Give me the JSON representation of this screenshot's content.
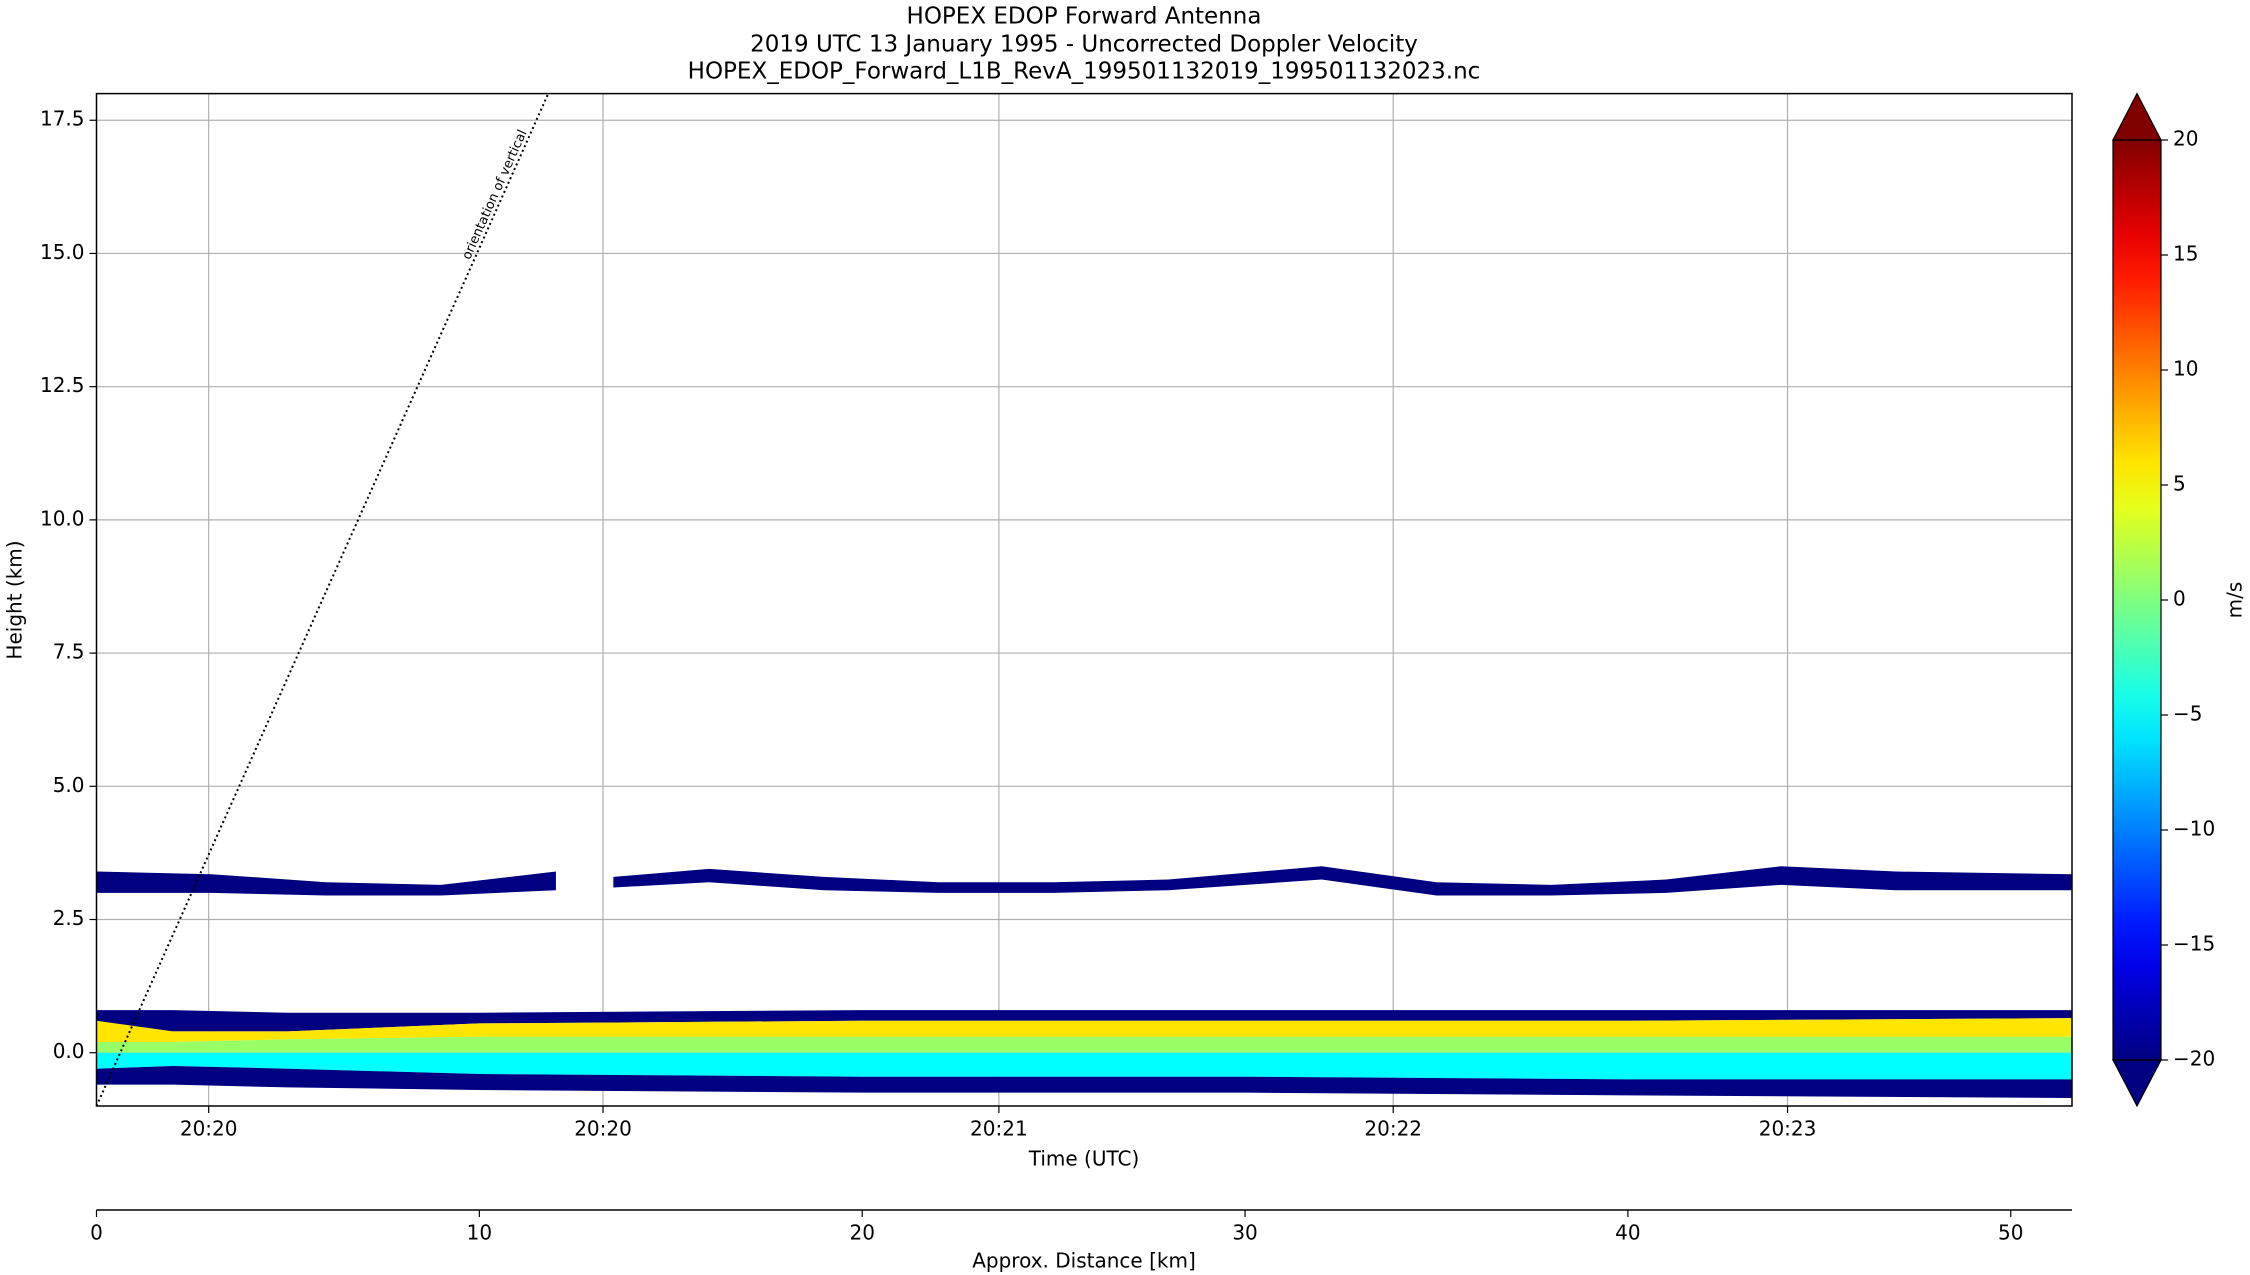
{
  "chart_data": {
    "type": "heatmap",
    "title": "HOPEX EDOP Forward Antenna",
    "subtitle": "2019 UTC 13 January 1995 - Uncorrected Doppler Velocity",
    "source": "HOPEX_EDOP_Forward_L1B_RevA_199501132019_199501132023.nc",
    "xlabel": "Time (UTC)",
    "x2label": "Approx. Distance [km]",
    "ylabel": "Height (km)",
    "xlim": [
      0,
      51.6
    ],
    "ylim": [
      -1,
      18
    ],
    "grid": true,
    "xticks": [
      {
        "value": 2.93,
        "label": "20:20"
      },
      {
        "value": 13.23,
        "label": "20:20"
      },
      {
        "value": 23.57,
        "label": "20:21"
      },
      {
        "value": 33.87,
        "label": "20:22"
      },
      {
        "value": 44.17,
        "label": "20:23"
      }
    ],
    "x2ticks": [
      0,
      10,
      20,
      30,
      40,
      50
    ],
    "yticks": [
      {
        "value": 0,
        "label": "0.0"
      },
      2.5,
      {
        "value": 5,
        "label": "5.0"
      },
      7.5,
      {
        "value": 10,
        "label": "10.0"
      },
      12.5,
      {
        "value": 15,
        "label": "15.0"
      },
      17.5
    ],
    "colorbar": {
      "label": "m/s",
      "colormap": "jet",
      "extend": "both",
      "lim": [
        -20,
        20
      ],
      "ticks": [
        {
          "value": -20,
          "label": "−20"
        },
        {
          "value": -15,
          "label": "−15"
        },
        {
          "value": -10,
          "label": "−10"
        },
        {
          "value": -5,
          "label": "−5"
        },
        0,
        5,
        10,
        15,
        20
      ]
    },
    "layers": [
      {
        "velocity": -20,
        "x": [
          0,
          3,
          6,
          9,
          12
        ],
        "top": [
          3.4,
          3.35,
          3.2,
          3.15,
          3.4
        ],
        "bottom": [
          3.0,
          3.0,
          2.95,
          2.95,
          3.05
        ]
      },
      {
        "velocity": -20,
        "x": [
          13.5,
          16,
          19,
          22,
          25,
          28,
          32,
          35,
          38,
          41,
          44,
          47,
          51.6
        ],
        "top": [
          3.3,
          3.45,
          3.3,
          3.2,
          3.2,
          3.25,
          3.5,
          3.2,
          3.15,
          3.25,
          3.5,
          3.4,
          3.35
        ],
        "bottom": [
          3.1,
          3.2,
          3.05,
          3.0,
          3.0,
          3.05,
          3.25,
          2.95,
          2.95,
          3.0,
          3.15,
          3.05,
          3.05
        ]
      },
      {
        "velocity": -20,
        "x": [
          0,
          2,
          5,
          10,
          20,
          30,
          40,
          51.6
        ],
        "top": [
          0.8,
          0.8,
          0.75,
          0.75,
          0.8,
          0.8,
          0.8,
          0.8
        ],
        "bottom": [
          0.3,
          0.4,
          0.4,
          0.55,
          0.6,
          0.6,
          0.6,
          0.65
        ]
      },
      {
        "velocity": 6,
        "x": [
          0,
          2,
          5,
          10,
          20,
          30,
          40,
          51.6
        ],
        "top": [
          0.6,
          0.4,
          0.4,
          0.55,
          0.6,
          0.6,
          0.6,
          0.65
        ],
        "bottom": [
          0.2,
          0.2,
          0.25,
          0.3,
          0.3,
          0.3,
          0.3,
          0.3
        ]
      },
      {
        "velocity": 1,
        "x": [
          0,
          2,
          5,
          10,
          20,
          30,
          40,
          51.6
        ],
        "top": [
          0.2,
          0.2,
          0.25,
          0.3,
          0.3,
          0.3,
          0.3,
          0.3
        ],
        "bottom": [
          0,
          0,
          0,
          0,
          0,
          0,
          0,
          0
        ]
      },
      {
        "velocity": -5,
        "x": [
          0,
          2,
          5,
          10,
          20,
          30,
          40,
          51.6
        ],
        "top": [
          0,
          0,
          0,
          0,
          0,
          0,
          0,
          0
        ],
        "bottom": [
          -0.3,
          -0.25,
          -0.3,
          -0.4,
          -0.45,
          -0.45,
          -0.5,
          -0.5
        ]
      },
      {
        "velocity": -20,
        "x": [
          0,
          2,
          5,
          10,
          20,
          30,
          40,
          51.6
        ],
        "top": [
          -0.3,
          -0.25,
          -0.3,
          -0.4,
          -0.45,
          -0.45,
          -0.5,
          -0.5
        ],
        "bottom": [
          -0.6,
          -0.6,
          -0.65,
          -0.7,
          -0.75,
          -0.75,
          -0.8,
          -0.85
        ]
      }
    ],
    "annotation": {
      "text": "orientation of vertical",
      "x": [
        0,
        11.8
      ],
      "y": [
        -1,
        18
      ]
    }
  }
}
